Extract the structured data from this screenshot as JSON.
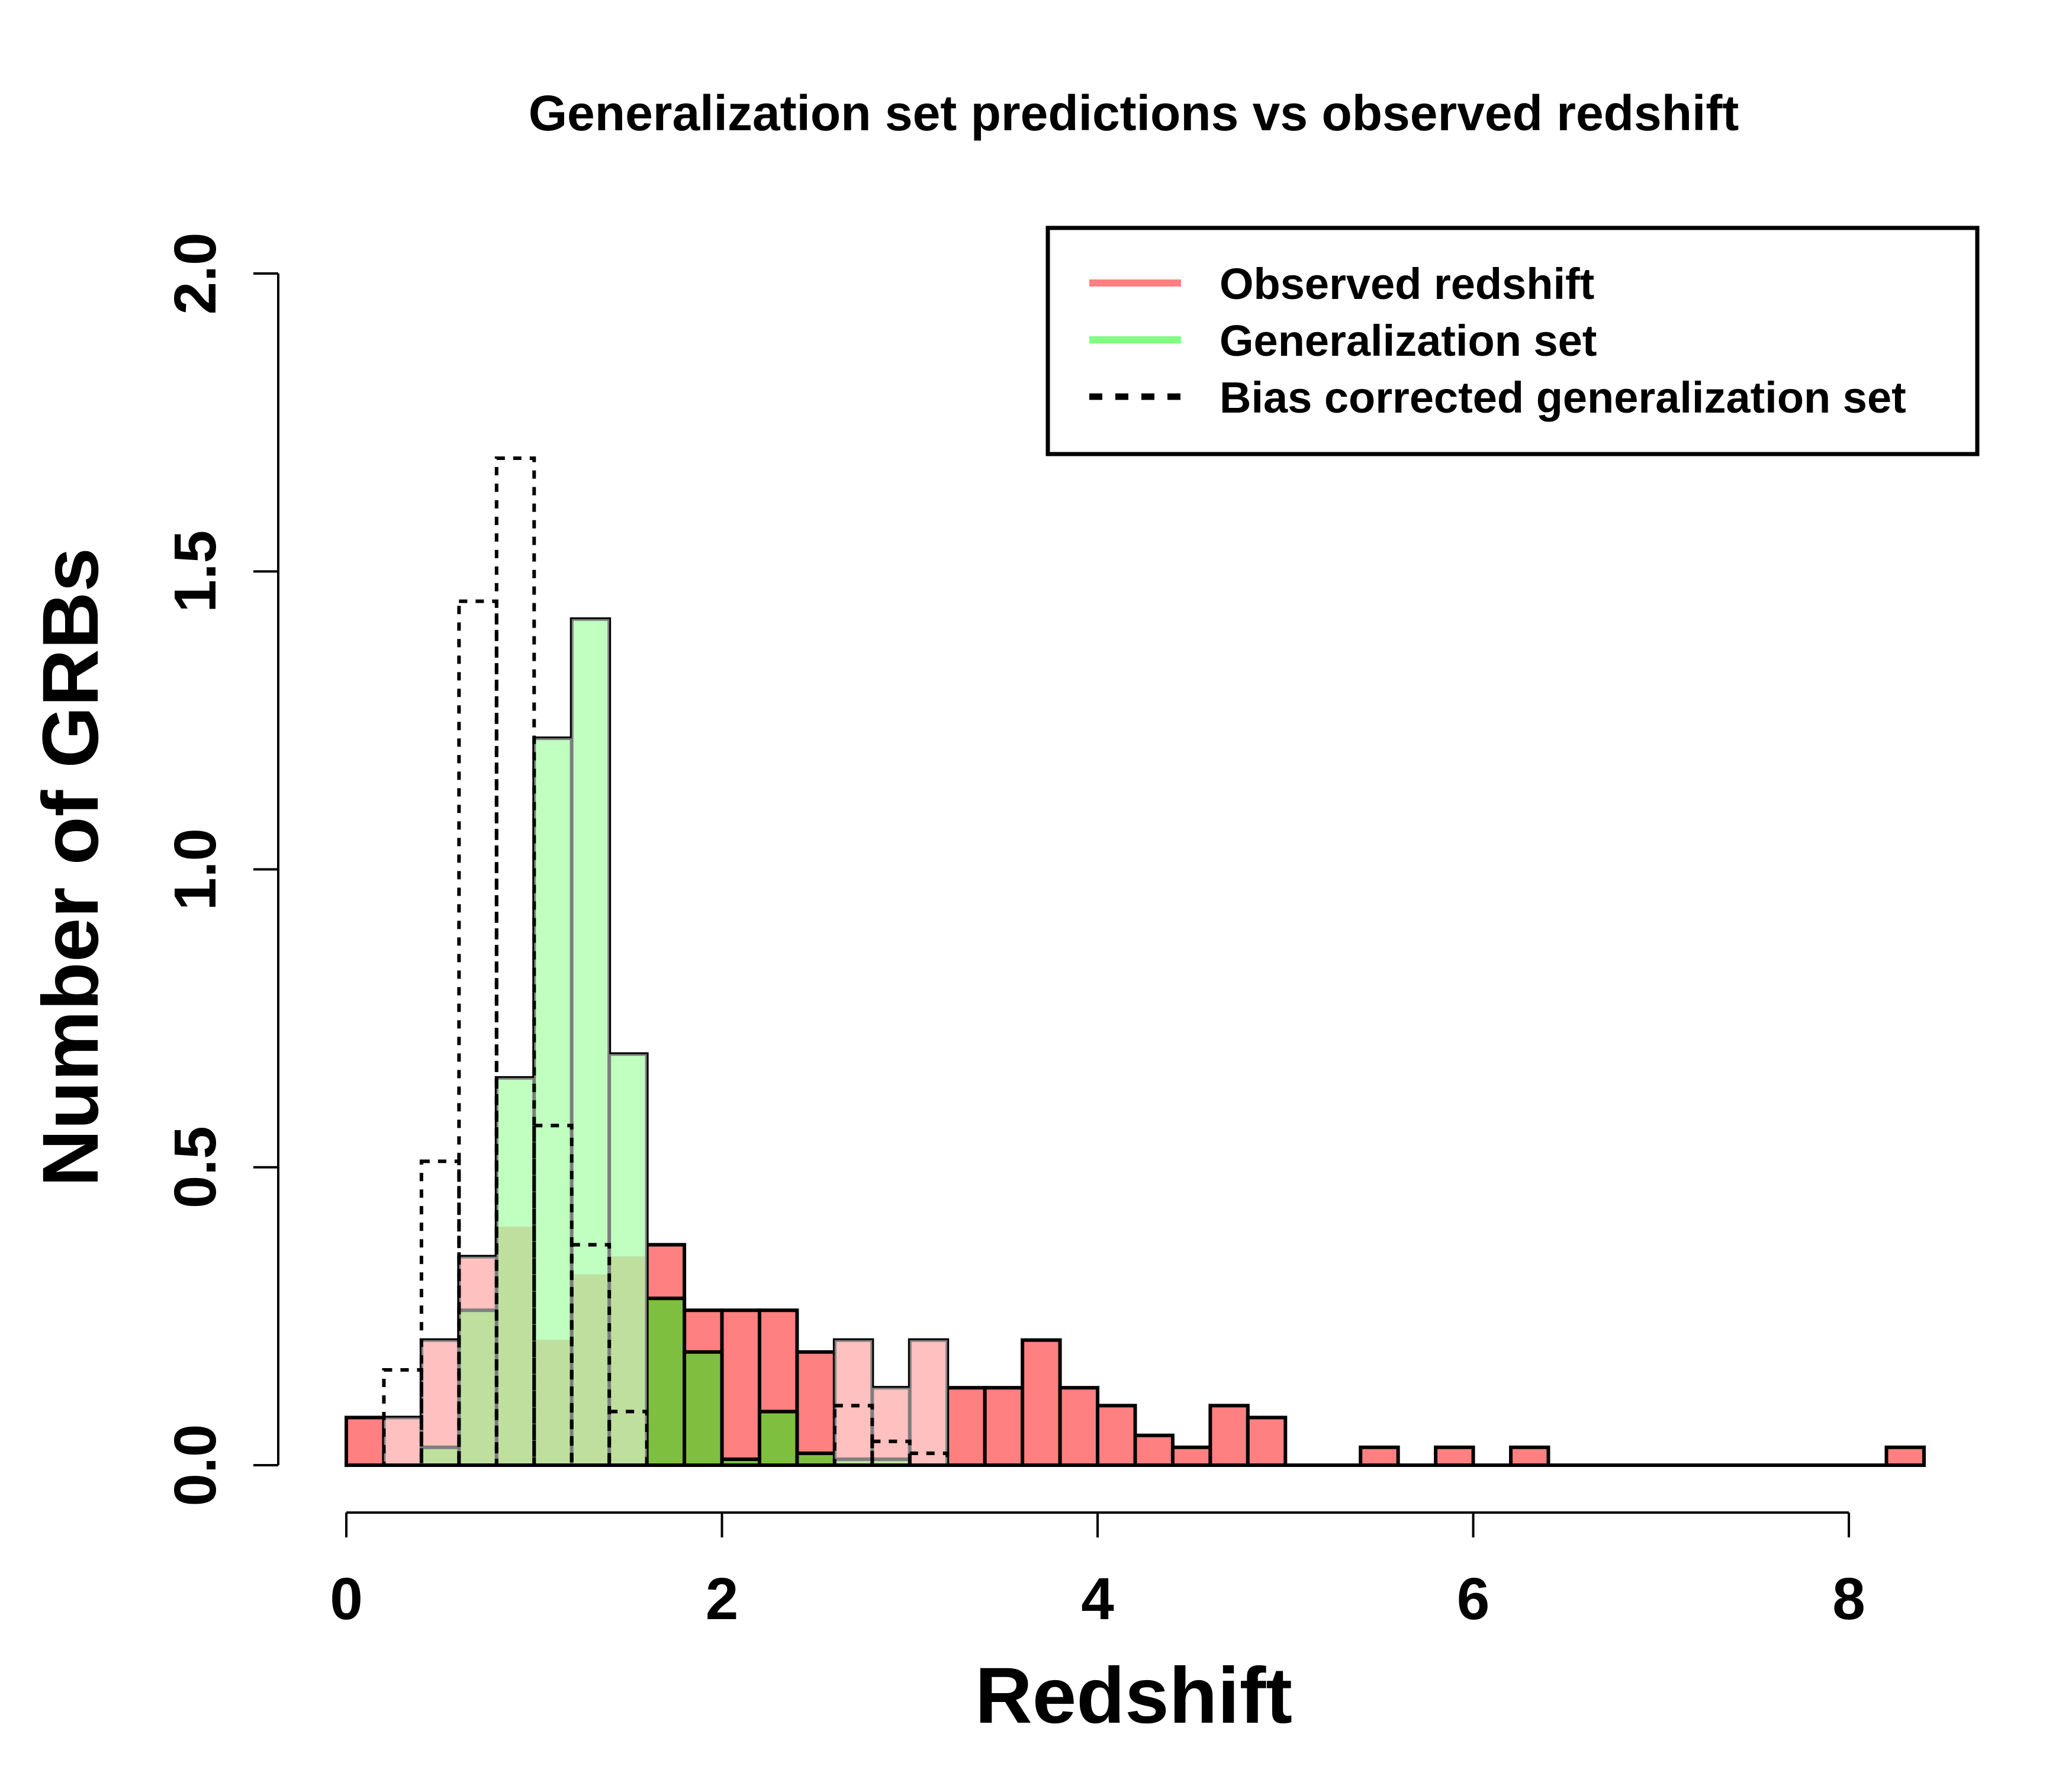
{
  "chart_data": {
    "type": "bar",
    "title": "Generalization set predictions vs observed redshift",
    "xlabel": "Redshift",
    "ylabel": "Number of GRBs",
    "xlim": [
      0,
      8.4
    ],
    "ylim": [
      0,
      2.0
    ],
    "xticks": [
      "0",
      "2",
      "4",
      "6",
      "8"
    ],
    "yticks": [
      "0.0",
      "0.5",
      "1.0",
      "1.5",
      "2.0"
    ],
    "bin_width": 0.2,
    "grid": false,
    "legend_position": "top-right",
    "colors": {
      "observed": "#ff8080",
      "generalization": "#80ff80",
      "overlap": "#7fbf3f",
      "bias": "#000000"
    },
    "series": [
      {
        "name": "Observed redshift",
        "style": "filled",
        "bin_starts": [
          0.0,
          0.2,
          0.4,
          0.6,
          0.8,
          1.0,
          1.2,
          1.4,
          1.6,
          1.8,
          2.0,
          2.2,
          2.4,
          2.6,
          2.8,
          3.0,
          3.2,
          3.4,
          3.6,
          3.8,
          4.0,
          4.2,
          4.4,
          4.6,
          4.8,
          5.0,
          5.2,
          5.4,
          5.6,
          5.8,
          6.0,
          6.2,
          6.4,
          6.6,
          6.8,
          7.0,
          7.2,
          7.4,
          7.6,
          7.8,
          8.0,
          8.2
        ],
        "values": [
          0.08,
          0.08,
          0.21,
          0.35,
          0.4,
          0.21,
          0.32,
          0.35,
          0.37,
          0.26,
          0.26,
          0.26,
          0.19,
          0.21,
          0.13,
          0.21,
          0.13,
          0.13,
          0.21,
          0.13,
          0.1,
          0.05,
          0.03,
          0.1,
          0.08,
          0.0,
          0.0,
          0.03,
          0.0,
          0.03,
          0.0,
          0.03,
          0.0,
          0.0,
          0.0,
          0.0,
          0.0,
          0.0,
          0.0,
          0.0,
          0.0,
          0.03
        ]
      },
      {
        "name": "Generalization set",
        "style": "filled",
        "bin_starts": [
          0.0,
          0.2,
          0.4,
          0.6,
          0.8,
          1.0,
          1.2,
          1.4,
          1.6,
          1.8,
          2.0,
          2.2,
          2.4,
          2.6,
          2.8,
          3.0
        ],
        "values": [
          0.0,
          0.0,
          0.03,
          0.26,
          0.65,
          1.22,
          1.42,
          0.69,
          0.28,
          0.19,
          0.01,
          0.09,
          0.02,
          0.01,
          0.01,
          0.0
        ]
      },
      {
        "name": "Bias corrected generalization set",
        "style": "dashed-outline",
        "bin_starts": [
          0.0,
          0.2,
          0.4,
          0.6,
          0.8,
          1.0,
          1.2,
          1.4,
          1.6,
          1.8,
          2.0,
          2.2,
          2.4,
          2.6,
          2.8,
          3.0
        ],
        "values": [
          0.0,
          0.16,
          0.51,
          1.45,
          1.69,
          0.57,
          0.37,
          0.09,
          0.0,
          0.0,
          0.0,
          0.0,
          0.0,
          0.1,
          0.04,
          0.02
        ]
      }
    ]
  }
}
